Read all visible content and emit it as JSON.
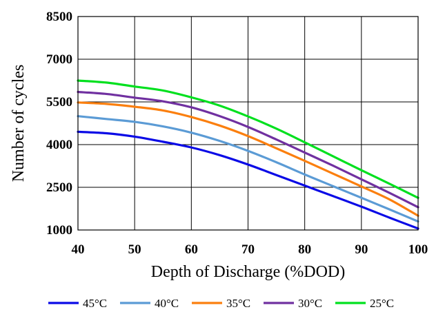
{
  "chart_data": {
    "type": "line",
    "title": "",
    "xlabel": "Depth of Discharge (%DOD)",
    "ylabel": "Number of cycles",
    "xlim": [
      40,
      100
    ],
    "ylim": [
      1000,
      8500
    ],
    "xticks": [
      40,
      50,
      60,
      70,
      80,
      90,
      100
    ],
    "yticks": [
      1000,
      2500,
      4000,
      5500,
      7000,
      8500
    ],
    "x_tick_labels": [
      "40",
      "50",
      "60",
      "70",
      "80",
      "90",
      "100"
    ],
    "y_tick_labels": [
      "1000",
      "2500",
      "4000",
      "5500",
      "7000",
      "8500"
    ],
    "grid": true,
    "legend_position": "bottom",
    "x": [
      40,
      45,
      50,
      55,
      60,
      65,
      70,
      75,
      80,
      85,
      90,
      95,
      100
    ],
    "series": [
      {
        "name": "45°C",
        "color": "#0a0ae6",
        "values": [
          4450,
          4400,
          4280,
          4100,
          3900,
          3630,
          3300,
          2930,
          2560,
          2190,
          1820,
          1430,
          1050
        ]
      },
      {
        "name": "40°C",
        "color": "#5b9bd5",
        "values": [
          5000,
          4900,
          4800,
          4640,
          4420,
          4130,
          3780,
          3380,
          2950,
          2540,
          2130,
          1720,
          1300
        ]
      },
      {
        "name": "35°C",
        "color": "#fb7f0e",
        "values": [
          5480,
          5430,
          5330,
          5200,
          4970,
          4670,
          4300,
          3870,
          3430,
          2980,
          2530,
          2070,
          1500
        ]
      },
      {
        "name": "30°C",
        "color": "#7030a0",
        "values": [
          5850,
          5780,
          5650,
          5520,
          5310,
          5000,
          4620,
          4180,
          3720,
          3260,
          2780,
          2300,
          1800
        ]
      },
      {
        "name": "25°C",
        "color": "#00e01e",
        "values": [
          6250,
          6180,
          6040,
          5900,
          5660,
          5370,
          4990,
          4560,
          4080,
          3590,
          3100,
          2620,
          2130
        ]
      }
    ]
  }
}
